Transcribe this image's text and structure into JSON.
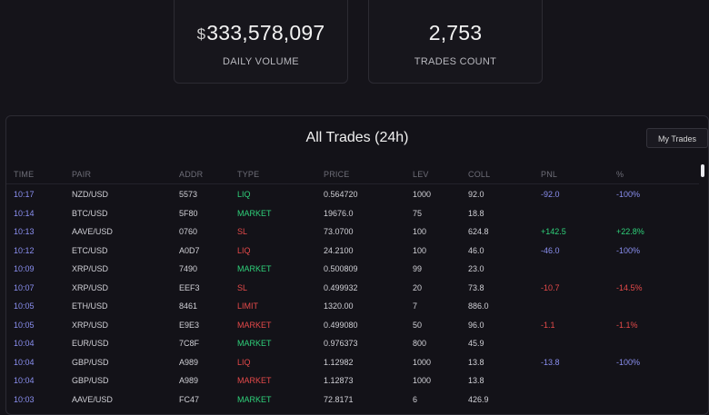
{
  "stats": {
    "volume": {
      "currency": "$",
      "value": "333,578,097",
      "label": "DAILY VOLUME"
    },
    "trades": {
      "value": "2,753",
      "label": "TRADES COUNT"
    }
  },
  "panel": {
    "title": "All Trades (24h)",
    "my_trades_label": "My Trades"
  },
  "columns": [
    "TIME",
    "PAIR",
    "ADDR",
    "TYPE",
    "PRICE",
    "LEV",
    "COLL",
    "PNL",
    "%"
  ],
  "colors": {
    "time": "#8a8ff0",
    "liq": "#2fd17a",
    "market": "#2fd17a",
    "sl": "#e64a4a",
    "limit": "#e64a4a",
    "market_red": "#e64a4a",
    "pnl_loss_blue": "#8a8ff0",
    "pnl_gain": "#2fd17a",
    "pnl_loss_red": "#e64a4a"
  },
  "trades": [
    {
      "time": "10:17",
      "pair": "NZD/USD",
      "addr": "5573",
      "type": "LIQ",
      "type_color": "#2fd17a",
      "price": "0.564720",
      "lev": "1000",
      "coll": "92.0",
      "pnl": "-92.0",
      "pct": "-100%",
      "pnl_color": "#8a8ff0"
    },
    {
      "time": "10:14",
      "pair": "BTC/USD",
      "addr": "5F80",
      "type": "MARKET",
      "type_color": "#2fd17a",
      "price": "19676.0",
      "lev": "75",
      "coll": "18.8",
      "pnl": "",
      "pct": "",
      "pnl_color": "#8a8ff0"
    },
    {
      "time": "10:13",
      "pair": "AAVE/USD",
      "addr": "0760",
      "type": "SL",
      "type_color": "#e64a4a",
      "price": "73.0700",
      "lev": "100",
      "coll": "624.8",
      "pnl": "+142.5",
      "pct": "+22.8%",
      "pnl_color": "#2fd17a"
    },
    {
      "time": "10:12",
      "pair": "ETC/USD",
      "addr": "A0D7",
      "type": "LIQ",
      "type_color": "#e64a4a",
      "price": "24.2100",
      "lev": "100",
      "coll": "46.0",
      "pnl": "-46.0",
      "pct": "-100%",
      "pnl_color": "#8a8ff0"
    },
    {
      "time": "10:09",
      "pair": "XRP/USD",
      "addr": "7490",
      "type": "MARKET",
      "type_color": "#2fd17a",
      "price": "0.500809",
      "lev": "99",
      "coll": "23.0",
      "pnl": "",
      "pct": "",
      "pnl_color": "#8a8ff0"
    },
    {
      "time": "10:07",
      "pair": "XRP/USD",
      "addr": "EEF3",
      "type": "SL",
      "type_color": "#e64a4a",
      "price": "0.499932",
      "lev": "20",
      "coll": "73.8",
      "pnl": "-10.7",
      "pct": "-14.5%",
      "pnl_color": "#e64a4a"
    },
    {
      "time": "10:05",
      "pair": "ETH/USD",
      "addr": "8461",
      "type": "LIMIT",
      "type_color": "#e64a4a",
      "price": "1320.00",
      "lev": "7",
      "coll": "886.0",
      "pnl": "",
      "pct": "",
      "pnl_color": "#8a8ff0"
    },
    {
      "time": "10:05",
      "pair": "XRP/USD",
      "addr": "E9E3",
      "type": "MARKET",
      "type_color": "#e64a4a",
      "price": "0.499080",
      "lev": "50",
      "coll": "96.0",
      "pnl": "-1.1",
      "pct": "-1.1%",
      "pnl_color": "#e64a4a"
    },
    {
      "time": "10:04",
      "pair": "EUR/USD",
      "addr": "7C8F",
      "type": "MARKET",
      "type_color": "#2fd17a",
      "price": "0.976373",
      "lev": "800",
      "coll": "45.9",
      "pnl": "",
      "pct": "",
      "pnl_color": "#8a8ff0"
    },
    {
      "time": "10:04",
      "pair": "GBP/USD",
      "addr": "A989",
      "type": "LIQ",
      "type_color": "#e64a4a",
      "price": "1.12982",
      "lev": "1000",
      "coll": "13.8",
      "pnl": "-13.8",
      "pct": "-100%",
      "pnl_color": "#8a8ff0"
    },
    {
      "time": "10:04",
      "pair": "GBP/USD",
      "addr": "A989",
      "type": "MARKET",
      "type_color": "#e64a4a",
      "price": "1.12873",
      "lev": "1000",
      "coll": "13.8",
      "pnl": "",
      "pct": "",
      "pnl_color": "#8a8ff0"
    },
    {
      "time": "10:03",
      "pair": "AAVE/USD",
      "addr": "FC47",
      "type": "MARKET",
      "type_color": "#2fd17a",
      "price": "72.8171",
      "lev": "6",
      "coll": "426.9",
      "pnl": "",
      "pct": "",
      "pnl_color": "#8a8ff0"
    }
  ]
}
